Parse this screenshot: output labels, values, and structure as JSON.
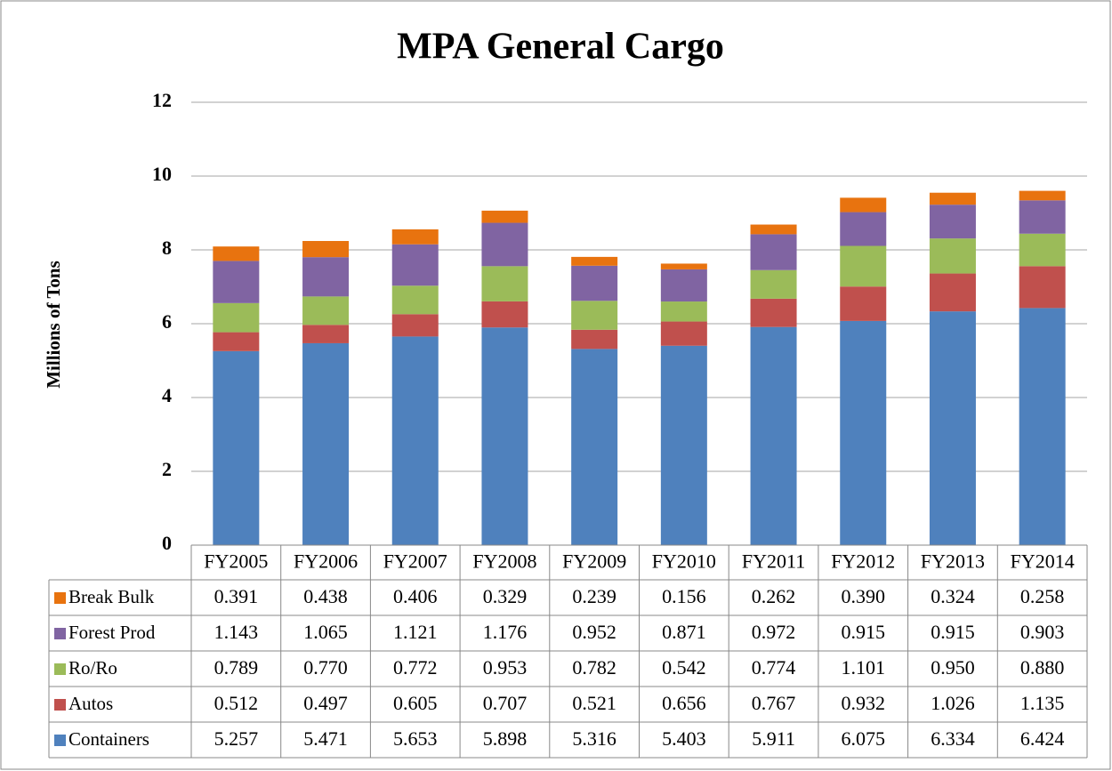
{
  "chart_data": {
    "type": "stacked_bar",
    "title": "MPA General Cargo",
    "y_label": "Millions of Tons",
    "categories": [
      "FY2005",
      "FY2006",
      "FY2007",
      "FY2008",
      "FY2009",
      "FY2010",
      "FY2011",
      "FY2012",
      "FY2013",
      "FY2014"
    ],
    "ylim": [
      0,
      12
    ],
    "yticks": [
      0,
      2,
      4,
      6,
      8,
      10,
      12
    ],
    "grid": true,
    "series": [
      {
        "name": "Containers",
        "color": "#4f81bd",
        "values": [
          5.257,
          5.471,
          5.653,
          5.898,
          5.316,
          5.403,
          5.911,
          6.075,
          6.334,
          6.424
        ],
        "value_labels": [
          "5.257",
          "5.471",
          "5.653",
          "5.898",
          "5.316",
          "5.403",
          "5.911",
          "6.075",
          "6.334",
          "6.424"
        ]
      },
      {
        "name": "Autos",
        "color": "#c0504d",
        "values": [
          0.512,
          0.497,
          0.605,
          0.707,
          0.521,
          0.656,
          0.767,
          0.932,
          1.026,
          1.135
        ],
        "value_labels": [
          "0.512",
          "0.497",
          "0.605",
          "0.707",
          "0.521",
          "0.656",
          "0.767",
          "0.932",
          "1.026",
          "1.135"
        ]
      },
      {
        "name": "Ro/Ro",
        "color": "#9bbb59",
        "values": [
          0.789,
          0.77,
          0.772,
          0.953,
          0.782,
          0.542,
          0.774,
          1.101,
          0.95,
          0.88
        ],
        "value_labels": [
          "0.789",
          "0.770",
          "0.772",
          "0.953",
          "0.782",
          "0.542",
          "0.774",
          "1.101",
          "0.950",
          "0.880"
        ]
      },
      {
        "name": "Forest Prod",
        "color": "#8064a2",
        "values": [
          1.143,
          1.065,
          1.121,
          1.176,
          0.952,
          0.871,
          0.972,
          0.915,
          0.915,
          0.903
        ],
        "value_labels": [
          "1.143",
          "1.065",
          "1.121",
          "1.176",
          "0.952",
          "0.871",
          "0.972",
          "0.915",
          "0.915",
          "0.903"
        ]
      },
      {
        "name": "Break Bulk",
        "color": "#e8730f",
        "values": [
          0.391,
          0.438,
          0.406,
          0.329,
          0.239,
          0.156,
          0.262,
          0.39,
          0.324,
          0.258
        ],
        "value_labels": [
          "0.391",
          "0.438",
          "0.406",
          "0.329",
          "0.239",
          "0.156",
          "0.262",
          "0.390",
          "0.324",
          "0.258"
        ]
      }
    ]
  }
}
